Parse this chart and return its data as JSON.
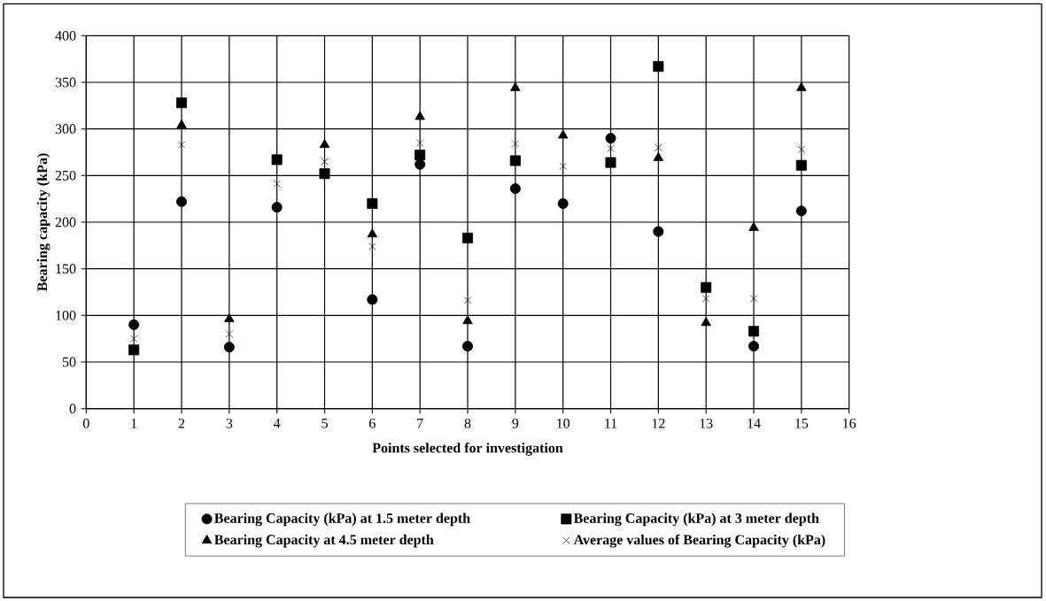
{
  "chart_data": {
    "type": "scatter",
    "xlabel": "Points selected for investigation",
    "ylabel": "Bearing capacity (kPa)",
    "x": [
      1,
      2,
      3,
      4,
      5,
      6,
      7,
      8,
      9,
      10,
      11,
      12,
      13,
      14,
      15
    ],
    "series": [
      {
        "name": "Bearing Capacity (kPa) at 1.5 meter depth",
        "color": "#000000",
        "marker": "circle",
        "values": [
          90,
          222,
          66,
          216,
          null,
          117,
          262,
          67,
          236,
          220,
          290,
          190,
          null,
          67,
          212
        ]
      },
      {
        "name": "Bearing Capacity (kPa) at 3 meter depth",
        "color": "#000000",
        "marker": "square",
        "values": [
          63,
          328,
          null,
          267,
          252,
          220,
          272,
          183,
          266,
          null,
          264,
          367,
          130,
          83,
          261
        ]
      },
      {
        "name": "Bearing Capacity at 4.5 meter depth",
        "color": "#000000",
        "marker": "triangle",
        "values": [
          null,
          304,
          96,
          null,
          283,
          187,
          313,
          94,
          344,
          293,
          null,
          269,
          92,
          194,
          344
        ]
      },
      {
        "name": "Average values of Bearing Capacity (kPa)",
        "color": "#000000",
        "marker": "cross",
        "values": [
          75,
          283,
          80,
          241,
          265,
          174,
          285,
          116,
          284,
          260,
          279,
          280,
          118,
          118,
          278
        ]
      }
    ],
    "xlim": [
      0,
      16
    ],
    "xticks": [
      0,
      1,
      2,
      3,
      4,
      5,
      6,
      7,
      8,
      9,
      10,
      11,
      12,
      13,
      14,
      15,
      16
    ],
    "ylim": [
      0,
      400
    ],
    "yticks": [
      0,
      50,
      100,
      150,
      200,
      250,
      300,
      350,
      400
    ],
    "grid": true,
    "legend": "bottom"
  }
}
